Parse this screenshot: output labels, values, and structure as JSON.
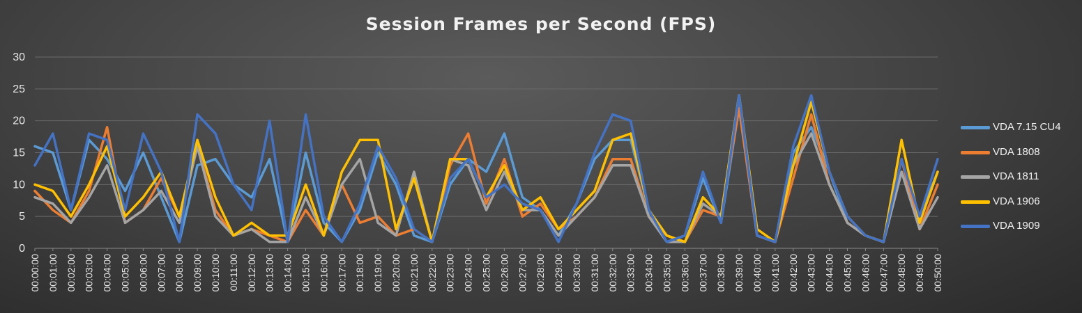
{
  "chart_data": {
    "type": "line",
    "title": "Session Frames per Second (FPS)",
    "xlabel": "",
    "ylabel": "",
    "ylim": [
      0,
      30
    ],
    "yticks": [
      0,
      5,
      10,
      15,
      20,
      25,
      30
    ],
    "grid": true,
    "legend_position": "right",
    "categories": [
      "00:00:00",
      "00:01:00",
      "00:02:00",
      "00:03:00",
      "00:04:00",
      "00:05:00",
      "00:06:00",
      "00:07:00",
      "00:08:00",
      "00:09:00",
      "00:10:00",
      "00:11:00",
      "00:12:00",
      "00:13:00",
      "00:14:00",
      "00:15:00",
      "00:16:00",
      "00:17:00",
      "00:18:00",
      "00:19:00",
      "00:20:00",
      "00:21:00",
      "00:22:00",
      "00:23:00",
      "00:24:00",
      "00:25:00",
      "00:26:00",
      "00:27:00",
      "00:28:00",
      "00:29:00",
      "00:30:00",
      "00:31:00",
      "00:32:00",
      "00:33:00",
      "00:34:00",
      "00:35:00",
      "00:36:00",
      "00:37:00",
      "00:38:00",
      "00:39:00",
      "00:40:00",
      "00:41:00",
      "00:42:00",
      "00:43:00",
      "00:44:00",
      "00:45:00",
      "00:46:00",
      "00:47:00",
      "00:48:00",
      "00:49:00",
      "00:50:00"
    ],
    "series": [
      {
        "name": "VDA 7.15 CU4",
        "color": "#5b9bd5",
        "values": [
          16,
          15,
          6,
          17,
          14,
          9,
          15,
          8,
          1,
          13,
          14,
          10,
          8,
          14,
          1,
          15,
          4,
          1,
          6,
          15,
          10,
          2,
          1,
          10,
          14,
          12,
          18,
          8,
          6,
          2,
          7,
          14,
          17,
          17,
          6,
          1,
          2,
          11,
          4,
          22,
          2,
          1,
          15,
          19,
          12,
          4,
          2,
          1,
          12,
          5,
          12
        ]
      },
      {
        "name": "VDA 1808",
        "color": "#ed7d31",
        "values": [
          9,
          6,
          4,
          9,
          19,
          4,
          6,
          11,
          5,
          16,
          6,
          2,
          3,
          2,
          1,
          6,
          2,
          10,
          4,
          5,
          2,
          3,
          1,
          13,
          18,
          7,
          14,
          5,
          7,
          3,
          5,
          8,
          14,
          14,
          5,
          2,
          1,
          6,
          5,
          22,
          2,
          1,
          11,
          21,
          10,
          4,
          2,
          1,
          14,
          3,
          10
        ]
      },
      {
        "name": "VDA 1811",
        "color": "#a5a5a5",
        "values": [
          8,
          7,
          4,
          8,
          13,
          4,
          6,
          9,
          4,
          16,
          5,
          2,
          3,
          1,
          1,
          8,
          2,
          10,
          14,
          4,
          2,
          12,
          1,
          14,
          13,
          6,
          12,
          6,
          6,
          2,
          5,
          8,
          13,
          13,
          5,
          1,
          1,
          7,
          5,
          24,
          2,
          1,
          13,
          18,
          10,
          4,
          2,
          1,
          12,
          3,
          8
        ]
      },
      {
        "name": "VDA 1906",
        "color": "#ffc000",
        "values": [
          10,
          9,
          5,
          10,
          16,
          5,
          8,
          12,
          5,
          17,
          8,
          2,
          4,
          2,
          2,
          10,
          2,
          12,
          17,
          17,
          3,
          11,
          1,
          14,
          14,
          8,
          13,
          6,
          8,
          3,
          6,
          9,
          17,
          18,
          6,
          2,
          1,
          8,
          5,
          24,
          3,
          1,
          13,
          23,
          12,
          5,
          2,
          1,
          17,
          4,
          12
        ]
      },
      {
        "name": "VDA 1909",
        "color": "#4472c4",
        "values": [
          13,
          18,
          6,
          18,
          17,
          6,
          18,
          12,
          1,
          21,
          18,
          10,
          6,
          20,
          1,
          21,
          5,
          1,
          7,
          16,
          11,
          3,
          1,
          11,
          14,
          8,
          10,
          7,
          6,
          1,
          7,
          15,
          21,
          20,
          6,
          1,
          2,
          12,
          4,
          24,
          2,
          1,
          16,
          24,
          12,
          5,
          2,
          1,
          14,
          5,
          14
        ]
      }
    ]
  }
}
